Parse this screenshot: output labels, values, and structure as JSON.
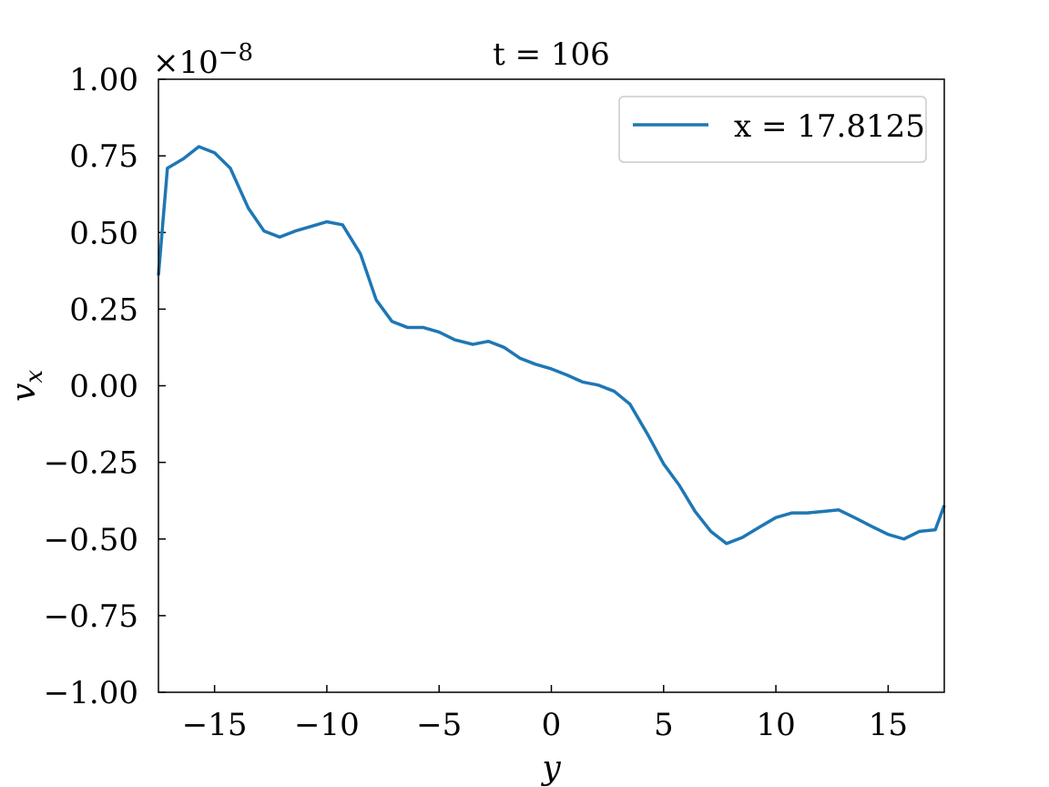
{
  "chart_data": {
    "type": "line",
    "title": "t = 106",
    "xlabel": "y",
    "ylabel": "v_x",
    "ylabel_base": "v",
    "ylabel_sub": "x",
    "y_offset_text": "×10",
    "y_offset_exponent": "−8",
    "xlim": [
      -17.5,
      17.5
    ],
    "ylim": [
      -1.0,
      1.0
    ],
    "x_ticks": [
      -15,
      -10,
      -5,
      0,
      5,
      10,
      15
    ],
    "x_tick_labels": [
      "−15",
      "−10",
      "−5",
      "0",
      "5",
      "10",
      "15"
    ],
    "y_ticks": [
      -1.0,
      -0.75,
      -0.5,
      -0.25,
      0.0,
      0.25,
      0.5,
      0.75,
      1.0
    ],
    "y_tick_labels": [
      "−1.00",
      "−0.75",
      "−0.50",
      "−0.25",
      "0.00",
      "0.25",
      "0.50",
      "0.75",
      "1.00"
    ],
    "grid": false,
    "legend_position": "top-right",
    "series": [
      {
        "name": "x = 17.8125",
        "color": "#1f77b4",
        "x": [
          -17.5,
          -17.1,
          -16.4,
          -15.7,
          -15.0,
          -14.3,
          -13.5,
          -12.8,
          -12.1,
          -11.4,
          -10.7,
          -10.0,
          -9.3,
          -8.5,
          -7.8,
          -7.1,
          -6.4,
          -5.7,
          -5.0,
          -4.3,
          -3.5,
          -2.8,
          -2.1,
          -1.4,
          -0.7,
          0.0,
          0.7,
          1.4,
          2.1,
          2.8,
          3.5,
          4.3,
          5.0,
          5.7,
          6.4,
          7.1,
          7.8,
          8.5,
          9.3,
          10.0,
          10.7,
          11.4,
          12.1,
          12.8,
          13.5,
          14.3,
          15.0,
          15.7,
          16.4,
          17.1,
          17.5
        ],
        "y": [
          0.36,
          0.71,
          0.74,
          0.78,
          0.76,
          0.71,
          0.58,
          0.505,
          0.485,
          0.505,
          0.52,
          0.535,
          0.525,
          0.43,
          0.28,
          0.21,
          0.19,
          0.19,
          0.175,
          0.15,
          0.135,
          0.145,
          0.125,
          0.09,
          0.07,
          0.055,
          0.035,
          0.012,
          0.002,
          -0.018,
          -0.06,
          -0.16,
          -0.255,
          -0.325,
          -0.41,
          -0.475,
          -0.515,
          -0.495,
          -0.46,
          -0.43,
          -0.415,
          -0.415,
          -0.41,
          -0.405,
          -0.43,
          -0.46,
          -0.485,
          -0.5,
          -0.475,
          -0.47,
          -0.39
        ]
      }
    ]
  }
}
